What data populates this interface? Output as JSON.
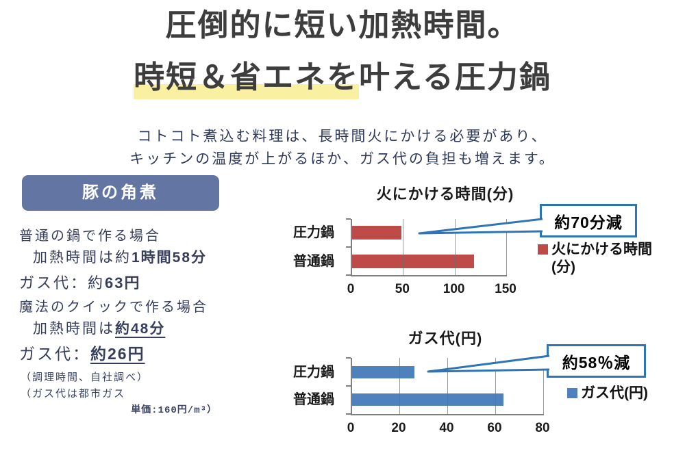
{
  "header": {
    "title_line1": "圧倒的に短い加熱時間。",
    "title_line2_highlight": "時短＆省エネを",
    "title_line2_rest": "叶える圧力鍋",
    "subtitle_line1": "コトコト煮込む料理は、長時間火にかける必要があり、",
    "subtitle_line2": "キッチンの温度が上がるほか、ガス代の負担も増えます。"
  },
  "case_panel": {
    "title": "豚の角煮",
    "line1": "普通の鍋で作る場合",
    "line2_prefix": "加熱時間は約",
    "line2_bold": "1時間58分",
    "line3_prefix": "ガス代：約",
    "line3_bold": "63円",
    "line4": "魔法のクイックで作る場合",
    "line5_prefix": "加熱時間は",
    "line5_emphasis": "約48分",
    "line6_prefix": "ガス代：",
    "line6_emphasis": "約26円",
    "note1": "（調理時間、自社調べ）",
    "note2": "（ガス代は都市ガス",
    "note3": "単価:160円/m³）"
  },
  "chart_data": [
    {
      "type": "bar",
      "orientation": "horizontal",
      "title": "火にかける時間(分)",
      "categories": [
        "圧力鍋",
        "普通鍋"
      ],
      "values": [
        48,
        118
      ],
      "xlabel": "",
      "ylabel": "",
      "xlim": [
        0,
        150
      ],
      "xticks": [
        0,
        50,
        100,
        150
      ],
      "grid": true,
      "bar_color": "#BE4B48",
      "legend": "火にかける時間(分)",
      "legend_position": "right",
      "annotation": "約70分減"
    },
    {
      "type": "bar",
      "orientation": "horizontal",
      "title": "ガス代(円)",
      "categories": [
        "圧力鍋",
        "普通鍋"
      ],
      "values": [
        26,
        63
      ],
      "xlabel": "",
      "ylabel": "",
      "xlim": [
        0,
        80
      ],
      "xticks": [
        0,
        20,
        40,
        60,
        80
      ],
      "grid": true,
      "bar_color": "#4F81BD",
      "legend": "ガス代(円)",
      "legend_position": "right",
      "annotation": "約58％減"
    }
  ],
  "colors": {
    "accent_slate": "#6375A3",
    "highlight_yellow": "#FAF0A2",
    "callout_blue": "#2E75B6",
    "bar_red": "#BE4B48",
    "bar_blue": "#4F81BD",
    "title_text": "#3d3d3d",
    "body_text": "#363E5C"
  }
}
